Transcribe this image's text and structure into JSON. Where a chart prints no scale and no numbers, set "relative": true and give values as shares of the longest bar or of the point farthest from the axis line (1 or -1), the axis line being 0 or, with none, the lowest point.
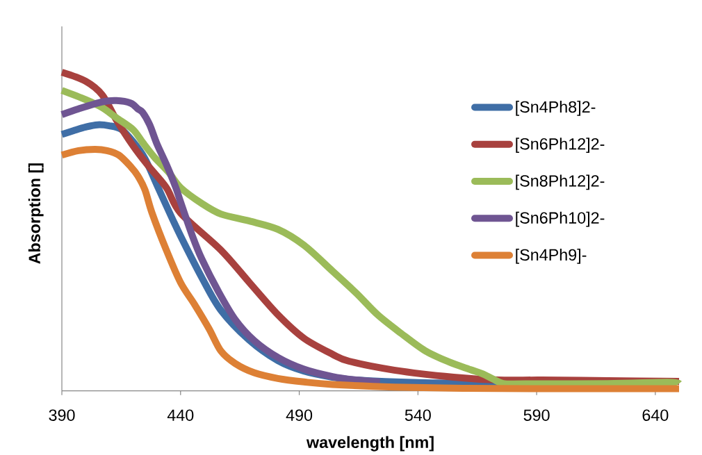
{
  "chart_data": {
    "type": "line",
    "relative": true,
    "xlabel": "wavelength [nm]",
    "ylabel": "Absorption []",
    "xlim": [
      390,
      650
    ],
    "xticks": [
      390,
      440,
      490,
      540,
      590,
      640
    ],
    "legend": "right",
    "marker": "none",
    "line_style": "solid",
    "series": [
      {
        "name": "[Sn4Ph8]2-",
        "color": "#3f6ea6",
        "x": [
          390,
          395,
          400,
          405,
          410,
          415,
          420,
          425,
          430,
          435,
          440,
          449,
          457,
          469,
          481,
          492,
          504,
          514,
          540,
          575
        ],
        "values": [
          0.805,
          0.817,
          0.828,
          0.835,
          0.832,
          0.821,
          0.782,
          0.729,
          0.647,
          0.565,
          0.486,
          0.355,
          0.253,
          0.159,
          0.095,
          0.062,
          0.043,
          0.034,
          0.026,
          0.023
        ]
      },
      {
        "name": "[Sn6Ph12]2-",
        "color": "#a8413e",
        "x": [
          390,
          400,
          407,
          413,
          420,
          426,
          434,
          440,
          457,
          469,
          481,
          492,
          504,
          511,
          530,
          555,
          574,
          592,
          620,
          650
        ],
        "values": [
          1.0,
          0.972,
          0.929,
          0.85,
          0.769,
          0.71,
          0.638,
          0.558,
          0.442,
          0.34,
          0.239,
          0.165,
          0.115,
          0.093,
          0.065,
          0.043,
          0.034,
          0.034,
          0.032,
          0.03
        ]
      },
      {
        "name": "[Sn8Ph12]2-",
        "color": "#9bbb59",
        "x": [
          390,
          400,
          407,
          413,
          420,
          424,
          429,
          435,
          440,
          449,
          457,
          469,
          481,
          492,
          504,
          514,
          523,
          533,
          543,
          553,
          562,
          567,
          572,
          576,
          585,
          620,
          645,
          650
        ],
        "values": [
          0.943,
          0.914,
          0.889,
          0.857,
          0.82,
          0.78,
          0.733,
          0.686,
          0.638,
          0.588,
          0.555,
          0.533,
          0.507,
          0.457,
          0.376,
          0.307,
          0.239,
          0.18,
          0.126,
          0.091,
          0.067,
          0.054,
          0.036,
          0.023,
          0.022,
          0.023,
          0.027,
          0.023
        ]
      },
      {
        "name": "[Sn6Ph10]2-",
        "color": "#6f5592",
        "x": [
          390,
          397,
          407,
          413,
          419,
          422,
          424,
          427,
          430,
          434,
          438,
          440,
          445,
          449,
          456,
          463,
          471,
          481,
          492,
          504,
          514,
          524
        ],
        "values": [
          0.867,
          0.885,
          0.907,
          0.911,
          0.903,
          0.885,
          0.874,
          0.835,
          0.776,
          0.711,
          0.638,
          0.593,
          0.486,
          0.413,
          0.311,
          0.224,
          0.158,
          0.105,
          0.068,
          0.045,
          0.034,
          0.028
        ]
      },
      {
        "name": "[Sn4Ph9]-",
        "color": "#dd8035",
        "x": [
          390,
          397,
          404,
          409,
          414,
          419,
          422,
          425,
          428,
          434,
          440,
          446,
          452,
          457,
          463,
          471,
          481,
          492,
          504,
          530,
          560,
          600,
          650
        ],
        "values": [
          0.74,
          0.754,
          0.758,
          0.754,
          0.74,
          0.704,
          0.675,
          0.631,
          0.558,
          0.442,
          0.34,
          0.27,
          0.195,
          0.125,
          0.086,
          0.057,
          0.039,
          0.028,
          0.02,
          0.012,
          0.008,
          0.007,
          0.007
        ]
      }
    ]
  }
}
